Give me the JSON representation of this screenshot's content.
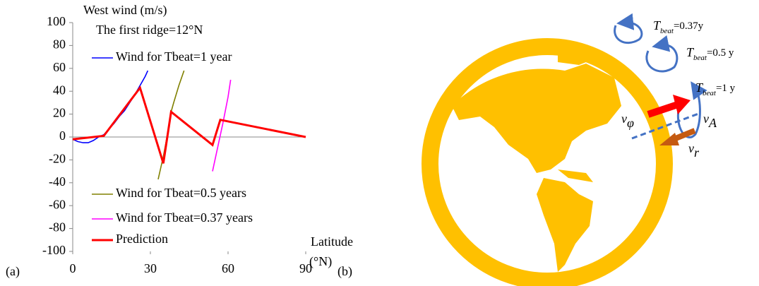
{
  "chart_data": {
    "type": "line",
    "y_label": "West wind (m/s)",
    "x_label": "Latitude",
    "x_unit": "(°N)",
    "panel_label": "(a)",
    "annotation": "The first ridge=12°N",
    "xlim": [
      0,
      90
    ],
    "xticks": [
      0,
      30,
      60,
      90
    ],
    "ylim": [
      -100,
      100
    ],
    "yticks": [
      -100,
      -80,
      -60,
      -40,
      -20,
      0,
      20,
      40,
      60,
      80,
      100
    ],
    "series": [
      {
        "name": "Wind for Tbeat=1 year",
        "color": "#0000ff",
        "x": [
          0,
          2,
          4,
          6,
          8,
          10,
          12,
          14,
          16,
          18,
          20,
          22,
          24,
          26,
          28,
          29
        ],
        "values": [
          -2,
          -4,
          -5,
          -5,
          -3,
          0,
          2,
          7,
          12,
          18,
          23,
          30,
          37,
          45,
          53,
          58
        ]
      },
      {
        "name": "Wind for Tbeat=0.5 years",
        "color": "#808000",
        "x": [
          33,
          34,
          35,
          36,
          37,
          38,
          39,
          41,
          43
        ],
        "values": [
          -37,
          -27,
          -17,
          -5,
          8,
          22,
          30,
          45,
          58
        ]
      },
      {
        "name": "Wind for Tbeat=0.37 years",
        "color": "#ff00ff",
        "x": [
          54,
          56,
          58,
          60,
          61
        ],
        "values": [
          -30,
          -9,
          12,
          35,
          50
        ]
      },
      {
        "name": "Prediction",
        "color": "#ff0000",
        "x": [
          0,
          12,
          26,
          35,
          38,
          54,
          57,
          90
        ],
        "values": [
          -2,
          1,
          43,
          -23,
          22,
          -7,
          15,
          0
        ]
      }
    ]
  },
  "diagram": {
    "panel_label": "(b)",
    "periods": [
      {
        "main": "T",
        "sub": "beat",
        "rest": "=0.37y"
      },
      {
        "main": "T",
        "sub": "beat",
        "rest": "=0.5 y"
      },
      {
        "main": "T",
        "sub": "beat",
        "rest": "=1 y"
      }
    ],
    "v_phi": {
      "main": "v",
      "sub": "φ"
    },
    "v_a": {
      "main": "v",
      "sub": "A"
    },
    "v_r": {
      "main": "v",
      "sub": "r"
    }
  }
}
